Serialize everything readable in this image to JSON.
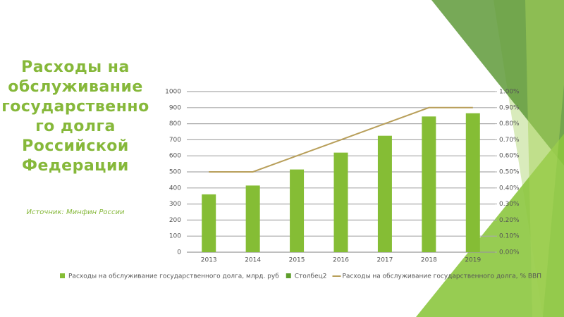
{
  "title": "Расходы на обслуживание государственного долга Российской Федерации",
  "subtitle": "Источник: Минфин России",
  "chart_data": {
    "type": "bar",
    "categories": [
      "2013",
      "2014",
      "2015",
      "2016",
      "2017",
      "2018",
      "2019"
    ],
    "series": [
      {
        "name": "Расходы на обслуживание государственного долга, млрд. руб",
        "color": "#85bd35",
        "values": [
          360,
          415,
          515,
          620,
          725,
          845,
          865
        ]
      },
      {
        "name": "Столбец2",
        "color": "#5e9e2c",
        "values": [
          null,
          null,
          null,
          null,
          null,
          null,
          null
        ]
      },
      {
        "name": "Расходы на обслуживание государственного долга, % ВВП",
        "type": "line",
        "axis": "y2",
        "color": "#b89f5a",
        "values": [
          0.5,
          0.5,
          0.6,
          0.7,
          0.8,
          0.9,
          0.9
        ]
      }
    ],
    "ylim": [
      0,
      1000
    ],
    "yticks": [
      0,
      100,
      200,
      300,
      400,
      500,
      600,
      700,
      800,
      900,
      1000
    ],
    "y2lim": [
      0,
      1
    ],
    "y2ticks": [
      {
        "value": 0,
        "label": "0.00%"
      },
      {
        "value": 0.1,
        "label": "0.10%"
      },
      {
        "value": 0.2,
        "label": "0.20%"
      },
      {
        "value": 0.3,
        "label": "0.30%"
      },
      {
        "value": 0.4,
        "label": "0.40%"
      },
      {
        "value": 0.5,
        "label": "0.50%"
      },
      {
        "value": 0.6,
        "label": "0.60%"
      },
      {
        "value": 0.7,
        "label": "0.70%"
      },
      {
        "value": 0.8,
        "label": "0.80%"
      },
      {
        "value": 0.9,
        "label": "0.90%"
      },
      {
        "value": 1,
        "label": "1.00%"
      }
    ],
    "grid": true,
    "legend": "bottom"
  }
}
